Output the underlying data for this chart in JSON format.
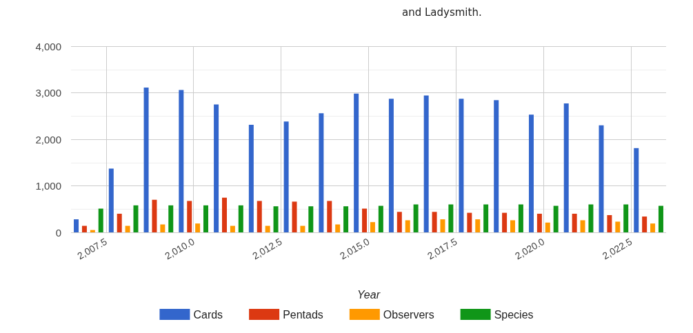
{
  "chart_data": {
    "type": "bar",
    "annotations": [
      "and Ladysmith."
    ],
    "xlabel": "Year",
    "x": [
      2007,
      2008,
      2009,
      2010,
      2011,
      2012,
      2013,
      2014,
      2015,
      2016,
      2017,
      2018,
      2019,
      2020,
      2021,
      2022,
      2023
    ],
    "series": [
      {
        "name": "Cards",
        "color": "#3366cc",
        "values": [
          280,
          1370,
          3110,
          3060,
          2750,
          2310,
          2380,
          2560,
          2980,
          2870,
          2940,
          2870,
          2840,
          2530,
          2770,
          2300,
          1810
        ]
      },
      {
        "name": "Pentads",
        "color": "#dc3912",
        "values": [
          140,
          400,
          700,
          675,
          745,
          675,
          660,
          675,
          510,
          440,
          440,
          420,
          420,
          400,
          400,
          370,
          340
        ]
      },
      {
        "name": "Observers",
        "color": "#ff9900",
        "values": [
          50,
          140,
          170,
          190,
          140,
          140,
          140,
          170,
          220,
          260,
          280,
          280,
          260,
          210,
          260,
          230,
          190
        ]
      },
      {
        "name": "Species",
        "color": "#109618",
        "values": [
          510,
          580,
          580,
          580,
          580,
          560,
          560,
          560,
          570,
          600,
          600,
          600,
          600,
          570,
          600,
          600,
          570
        ]
      }
    ],
    "xlim": [
      2006.5,
      2023.5
    ],
    "xticks": [
      {
        "value": 2007.5,
        "label": "2,007.5"
      },
      {
        "value": 2010,
        "label": "2,010.0"
      },
      {
        "value": 2012.5,
        "label": "2,012.5"
      },
      {
        "value": 2015,
        "label": "2,015.0"
      },
      {
        "value": 2017.5,
        "label": "2,017.5"
      },
      {
        "value": 2020,
        "label": "2,020.0"
      },
      {
        "value": 2022.5,
        "label": "2,022.5"
      }
    ],
    "ylim": [
      0,
      4000
    ],
    "yticks": [
      {
        "value": 0,
        "label": "0"
      },
      {
        "value": 1000,
        "label": "1,000"
      },
      {
        "value": 2000,
        "label": "2,000"
      },
      {
        "value": 3000,
        "label": "3,000"
      },
      {
        "value": 4000,
        "label": "4,000"
      }
    ],
    "grid": true,
    "legend": "bottom"
  }
}
